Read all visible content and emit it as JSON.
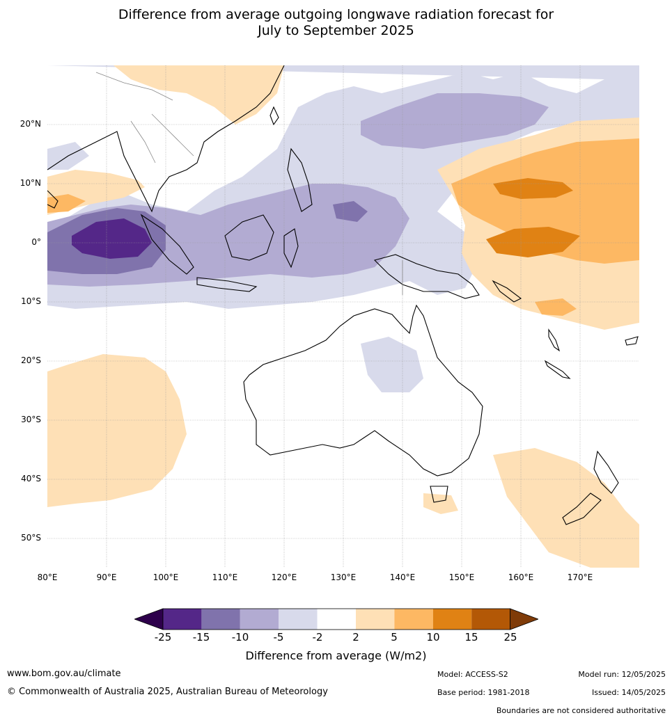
{
  "title_line1": "Difference from average outgoing longwave radiation forecast for",
  "title_line2": "July to September 2025",
  "lat_labels": [
    "20°N",
    "10°N",
    "0°",
    "10°S",
    "20°S",
    "30°S",
    "40°S",
    "50°S"
  ],
  "lon_labels": [
    "80°E",
    "90°E",
    "100°E",
    "110°E",
    "120°E",
    "130°E",
    "140°E",
    "150°E",
    "160°E",
    "170°E"
  ],
  "colorbar": {
    "ticks": [
      "-25",
      "-15",
      "-10",
      "-5",
      "-2",
      "2",
      "5",
      "10",
      "15",
      "25"
    ],
    "label": "Difference from average (W/m2)",
    "colors": {
      "below_min": "#2d004b",
      "n25_15": "#542788",
      "n15_10": "#8073ac",
      "n10_5": "#b2abd2",
      "n5_2": "#d8daeb",
      "n2_2": "#ffffff",
      "p2_5": "#fee0b6",
      "p5_10": "#fdb863",
      "p10_15": "#e08214",
      "p15_25": "#b35806",
      "above_max": "#7f3b08"
    }
  },
  "footer": {
    "website": "www.bom.gov.au/climate",
    "copyright": "© Commonwealth of Australia 2025, Australian Bureau of Meteorology",
    "model": "Model: ACCESS-S2",
    "base_period": "Base period: 1981-2018",
    "model_run": "Model run: 12/05/2025",
    "issued": "Issued: 14/05/2025",
    "boundaries": "Boundaries are not considered authoritative"
  }
}
